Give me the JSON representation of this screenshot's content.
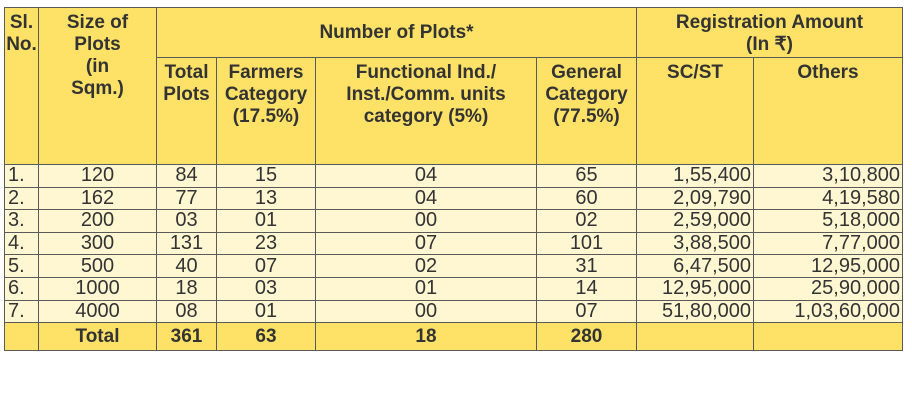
{
  "headers": {
    "sl_no": [
      "Sl.",
      "No."
    ],
    "size_of_plots": [
      "Size of",
      "Plots",
      "(in",
      "Sqm.)"
    ],
    "number_of_plots": "Number of Plots*",
    "registration_amount": [
      "Registration Amount",
      "(In ₹)"
    ],
    "total_plots": [
      "Total",
      "Plots"
    ],
    "farmers_category": [
      "Farmers",
      "Category",
      "(17.5%)"
    ],
    "functional_category": [
      "Functional Ind./",
      "Inst./Comm. units",
      "category (5%)"
    ],
    "general_category": [
      "General",
      "Category",
      "(77.5%)"
    ],
    "sc_st": "SC/ST",
    "others": "Others"
  },
  "rows": [
    {
      "sl": "1.",
      "size": "120",
      "total": "84",
      "farmers": "15",
      "functional": "04",
      "general": "65",
      "sc_st": "1,55,400",
      "others": "3,10,800"
    },
    {
      "sl": "2.",
      "size": "162",
      "total": "77",
      "farmers": "13",
      "functional": "04",
      "general": "60",
      "sc_st": "2,09,790",
      "others": "4,19,580"
    },
    {
      "sl": "3.",
      "size": "200",
      "total": "03",
      "farmers": "01",
      "functional": "00",
      "general": "02",
      "sc_st": "2,59,000",
      "others": "5,18,000"
    },
    {
      "sl": "4.",
      "size": "300",
      "total": "131",
      "farmers": "23",
      "functional": "07",
      "general": "101",
      "sc_st": "3,88,500",
      "others": "7,77,000"
    },
    {
      "sl": "5.",
      "size": "500",
      "total": "40",
      "farmers": "07",
      "functional": "02",
      "general": "31",
      "sc_st": "6,47,500",
      "others": "12,95,000"
    },
    {
      "sl": "6.",
      "size": "1000",
      "total": "18",
      "farmers": "03",
      "functional": "01",
      "general": "14",
      "sc_st": "12,95,000",
      "others": "25,90,000"
    },
    {
      "sl": "7.",
      "size": "4000",
      "total": "08",
      "farmers": "01",
      "functional": "00",
      "general": "07",
      "sc_st": "51,80,000",
      "others": "1,03,60,000"
    }
  ],
  "totals": {
    "label": "Total",
    "total": "361",
    "farmers": "63",
    "functional": "18",
    "general": "280"
  },
  "colors": {
    "header_background": "#fde267",
    "body_background": "#fef7d2",
    "border": "#5a5a5a",
    "text": "#333333"
  }
}
